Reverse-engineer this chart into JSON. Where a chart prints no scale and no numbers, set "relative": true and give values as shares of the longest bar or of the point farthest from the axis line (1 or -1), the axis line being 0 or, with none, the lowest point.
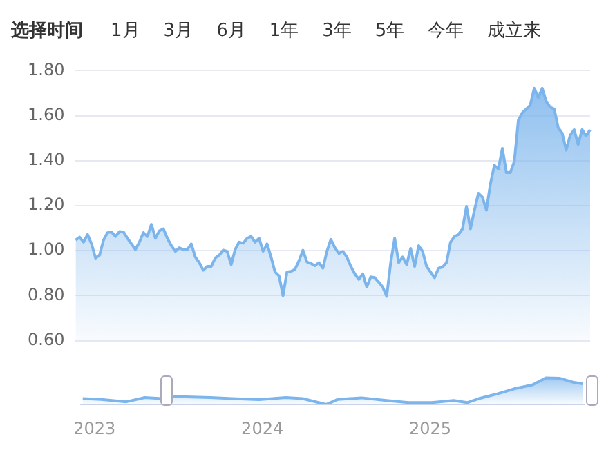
{
  "chart_data": [
    {
      "type": "other",
      "title": "选择时间",
      "annotations": [
        "1月",
        "3月",
        "6月",
        "1年",
        "3年",
        "5年",
        "今年",
        "成立来"
      ]
    },
    {
      "type": "area",
      "color": "#7cb5ec",
      "marker": "none",
      "grid": "y",
      "tick_labels": "y",
      "ylim": [
        0.6,
        1.8
      ],
      "yticks": [
        {
          "value": 0.6,
          "label": "0.60"
        },
        {
          "value": 0.8,
          "label": "0.80"
        },
        {
          "value": 1.0,
          "label": "1.00"
        },
        {
          "value": 1.2,
          "label": "1.20"
        },
        {
          "value": 1.4,
          "label": "1.40"
        },
        {
          "value": 1.6,
          "label": "1.60"
        },
        {
          "value": 1.8,
          "label": "1.80"
        }
      ],
      "categories": [
        null,
        null,
        null,
        null,
        null,
        null,
        null,
        null,
        null,
        null,
        null,
        null,
        null,
        null,
        null,
        null,
        null,
        null,
        null,
        null,
        null,
        null,
        null,
        null,
        null,
        null,
        null,
        null,
        null,
        null,
        null,
        null,
        null,
        null,
        null,
        null,
        null,
        null,
        null,
        null,
        null,
        null,
        null,
        null,
        null,
        null,
        null,
        null,
        null,
        null,
        null,
        null,
        null,
        null,
        null,
        null,
        null,
        null,
        null,
        null,
        null,
        null,
        null,
        null,
        null,
        null,
        null,
        null,
        null,
        null,
        null,
        null,
        null,
        null,
        null,
        null,
        null,
        null,
        null,
        null,
        null,
        null,
        null,
        null,
        null,
        null,
        null,
        null,
        null,
        null,
        null,
        null,
        null,
        null,
        null,
        null,
        null,
        null,
        null,
        null,
        null,
        null,
        null,
        null,
        null,
        null,
        null,
        null,
        null,
        null,
        null,
        null,
        null,
        null,
        null,
        null,
        null,
        null,
        null,
        null,
        null,
        null,
        null,
        null,
        null,
        null,
        null,
        null,
        null,
        null
      ],
      "values": [
        1.047,
        1.06,
        1.038,
        1.072,
        1.03,
        0.967,
        0.98,
        1.047,
        1.08,
        1.083,
        1.063,
        1.085,
        1.083,
        1.055,
        1.03,
        1.005,
        1.038,
        1.08,
        1.063,
        1.117,
        1.055,
        1.088,
        1.097,
        1.055,
        1.022,
        0.997,
        1.013,
        1.005,
        1.005,
        1.03,
        0.972,
        0.947,
        0.913,
        0.93,
        0.93,
        0.967,
        0.98,
        1.002,
        0.997,
        0.938,
        1.005,
        1.038,
        1.033,
        1.055,
        1.063,
        1.038,
        1.055,
        0.997,
        1.03,
        0.972,
        0.905,
        0.888,
        0.8,
        0.905,
        0.908,
        0.917,
        0.955,
        1.002,
        0.95,
        0.943,
        0.933,
        0.947,
        0.922,
        0.997,
        1.05,
        1.013,
        0.988,
        0.997,
        0.972,
        0.93,
        0.897,
        0.872,
        0.897,
        0.838,
        0.883,
        0.88,
        0.86,
        0.838,
        0.797,
        0.947,
        1.055,
        0.947,
        0.972,
        0.938,
        1.01,
        0.93,
        1.022,
        0.997,
        0.93,
        0.905,
        0.88,
        0.922,
        0.927,
        0.947,
        1.038,
        1.063,
        1.072,
        1.097,
        1.197,
        1.097,
        1.18,
        1.255,
        1.238,
        1.18,
        1.297,
        1.38,
        1.363,
        1.455,
        1.347,
        1.347,
        1.397,
        1.58,
        1.613,
        1.63,
        1.647,
        1.722,
        1.68,
        1.722,
        1.663,
        1.638,
        1.63,
        1.547,
        1.522,
        1.447,
        1.513,
        1.538,
        1.472,
        1.538,
        1.51,
        1.538
      ]
    },
    {
      "type": "area",
      "color": "#7cb5ec",
      "marker": "none",
      "relative": true,
      "tick_labels": "x",
      "xlim": [
        2022.92,
        2025.92
      ],
      "xticks": [
        2023,
        2024,
        2025
      ],
      "x": [
        2022.93,
        2023.04,
        2023.19,
        2023.3,
        2023.4,
        2023.46,
        2023.51,
        2023.69,
        2023.82,
        2023.98,
        2024.14,
        2024.24,
        2024.38,
        2024.45,
        2024.59,
        2024.74,
        2024.87,
        2025.01,
        2025.14,
        2025.22,
        2025.29,
        2025.4,
        2025.5,
        2025.61,
        2025.69,
        2025.77,
        2025.85,
        2025.91
      ],
      "values": [
        0.22,
        0.19,
        0.1,
        0.26,
        0.22,
        0.29,
        0.29,
        0.26,
        0.22,
        0.18,
        0.26,
        0.22,
        0,
        0.19,
        0.25,
        0.15,
        0.07,
        0.07,
        0.15,
        0.07,
        0.22,
        0.4,
        0.59,
        0.74,
        1,
        0.99,
        0.84,
        0.78
      ]
    }
  ]
}
